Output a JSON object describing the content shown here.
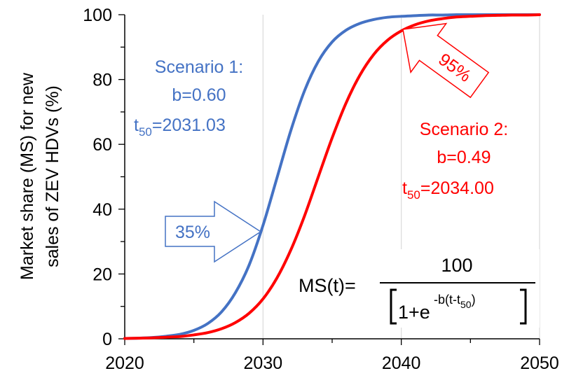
{
  "chart_data": {
    "type": "line",
    "title": "",
    "xlabel": "",
    "ylabel_line1": "Market share (MS) for new",
    "ylabel_line2": "sales of ZEV HDVs (%)",
    "xlim": [
      2020,
      2050
    ],
    "ylim": [
      0,
      100
    ],
    "x_ticks": [
      "2020",
      "2030",
      "2040",
      "2050"
    ],
    "y_ticks": [
      "0",
      "20",
      "40",
      "60",
      "80",
      "100"
    ],
    "grid": true,
    "series": [
      {
        "id": "scenario1",
        "color": "#4472C4",
        "b": 0.6,
        "t50": 2031.03,
        "x": [
          2020,
          2021,
          2022,
          2023,
          2024,
          2025,
          2026,
          2027,
          2028,
          2029,
          2030,
          2031,
          2032,
          2033,
          2034,
          2035,
          2036,
          2037,
          2038,
          2039,
          2040,
          2041,
          2042,
          2043,
          2044,
          2045,
          2046,
          2047,
          2048,
          2049,
          2050
        ],
        "values": [
          0.1,
          0.2,
          0.4,
          0.8,
          1.4,
          2.6,
          4.7,
          8.3,
          14.2,
          22.8,
          35.0,
          49.5,
          64.1,
          76.5,
          85.6,
          91.6,
          95.2,
          97.3,
          98.5,
          99.2,
          99.5,
          99.7,
          99.9,
          99.9,
          100.0,
          100.0,
          100.0,
          100.0,
          100.0,
          100.0,
          100.0
        ]
      },
      {
        "id": "scenario2",
        "color": "#FF0000",
        "b": 0.49,
        "t50": 2034.0,
        "x": [
          2020,
          2021,
          2022,
          2023,
          2024,
          2025,
          2026,
          2027,
          2028,
          2029,
          2030,
          2031,
          2032,
          2033,
          2034,
          2035,
          2036,
          2037,
          2038,
          2039,
          2040,
          2041,
          2042,
          2043,
          2044,
          2045,
          2046,
          2047,
          2048,
          2049,
          2050
        ],
        "values": [
          0.1,
          0.2,
          0.3,
          0.5,
          0.7,
          1.2,
          1.9,
          3.1,
          5.0,
          7.9,
          12.3,
          18.7,
          27.3,
          37.9,
          50.0,
          62.0,
          72.7,
          81.3,
          87.7,
          92.1,
          95.0,
          96.9,
          98.1,
          98.8,
          99.3,
          99.5,
          99.7,
          99.8,
          99.9,
          99.9,
          100.0
        ]
      }
    ],
    "annotations": {
      "scenario1_title": "Scenario 1:",
      "scenario1_b": "b=0.60",
      "scenario1_t": "t",
      "scenario1_t_sub": "50",
      "scenario1_t_val": "=2031.03",
      "scenario2_title": "Scenario 2:",
      "scenario2_b": "b=0.49",
      "scenario2_t": "t",
      "scenario2_t_sub": "50",
      "scenario2_t_val": "=2034.00",
      "arrow1_label": "35%",
      "arrow1_color": "#4472C4",
      "arrow2_label": "95%",
      "arrow2_color": "#FF0000",
      "formula_lhs": "MS(t)=",
      "formula_num": "100",
      "formula_one": "1+e",
      "formula_exp": "-b(t-t",
      "formula_exp_sub": "50",
      "formula_exp_close": ")"
    }
  }
}
